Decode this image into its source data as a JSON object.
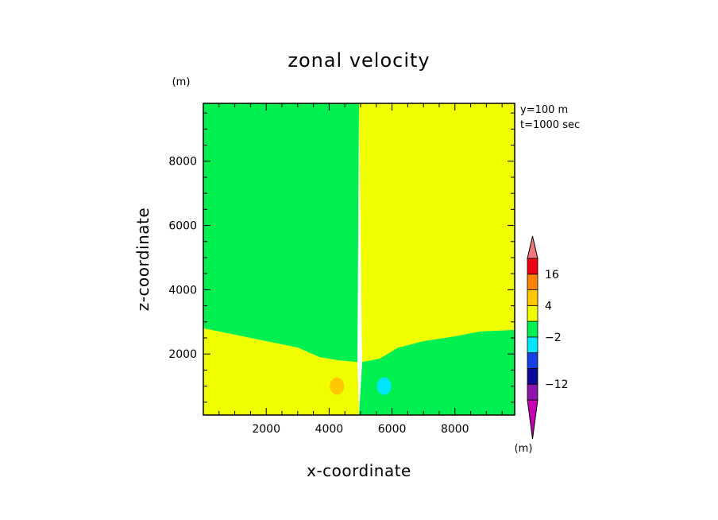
{
  "chart_data": {
    "type": "heatmap",
    "title": "zonal velocity",
    "xlabel": "x-coordinate",
    "ylabel": "z-coordinate",
    "x_unit": "(m)",
    "y_unit": "(m)",
    "colorbar_unit": "(m)",
    "annotation_line1": "y=100 m",
    "annotation_line2": "t=1000 sec",
    "xlim": [
      0,
      9900
    ],
    "ylim": [
      100,
      9800
    ],
    "x_ticks": [
      "2000",
      "4000",
      "6000",
      "8000"
    ],
    "y_ticks": [
      "2000",
      "4000",
      "6000",
      "8000"
    ],
    "colorbar": {
      "colors": [
        "#c800b4",
        "#8c14aa",
        "#0a0a96",
        "#1440e6",
        "#00e6ff",
        "#00f050",
        "#f0ff00",
        "#ffc800",
        "#ff8200",
        "#f00014",
        "#f07878"
      ],
      "labels": [
        "-12",
        "-2",
        "4",
        "16"
      ]
    },
    "regions": [
      {
        "name": "upper-left",
        "level": "-2 to 1",
        "color": "#00f050"
      },
      {
        "name": "upper-right",
        "level": "1 to 4",
        "color": "#f0ff00"
      },
      {
        "name": "lower-left",
        "level": "1 to 4",
        "color": "#f0ff00"
      },
      {
        "name": "lower-right",
        "level": "-2 to 1",
        "color": "#00f050"
      },
      {
        "name": "positive-blob",
        "level": "4 to 7",
        "color": "#ffc800",
        "center": [
          4250,
          1000
        ]
      },
      {
        "name": "negative-blob",
        "level": "-5 to -2",
        "color": "#00e6ff",
        "center": [
          5750,
          1000
        ]
      }
    ],
    "boundary": {
      "vertical_x": 4950,
      "interface_left": [
        [
          0,
          2800
        ],
        [
          1000,
          2600
        ],
        [
          2000,
          2400
        ],
        [
          3000,
          2200
        ],
        [
          3700,
          1900
        ],
        [
          4300,
          1800
        ],
        [
          4900,
          1750
        ]
      ],
      "interface_right": [
        [
          5050,
          1750
        ],
        [
          5600,
          1850
        ],
        [
          6200,
          2200
        ],
        [
          7000,
          2400
        ],
        [
          8000,
          2550
        ],
        [
          8800,
          2700
        ],
        [
          9900,
          2750
        ]
      ]
    }
  }
}
